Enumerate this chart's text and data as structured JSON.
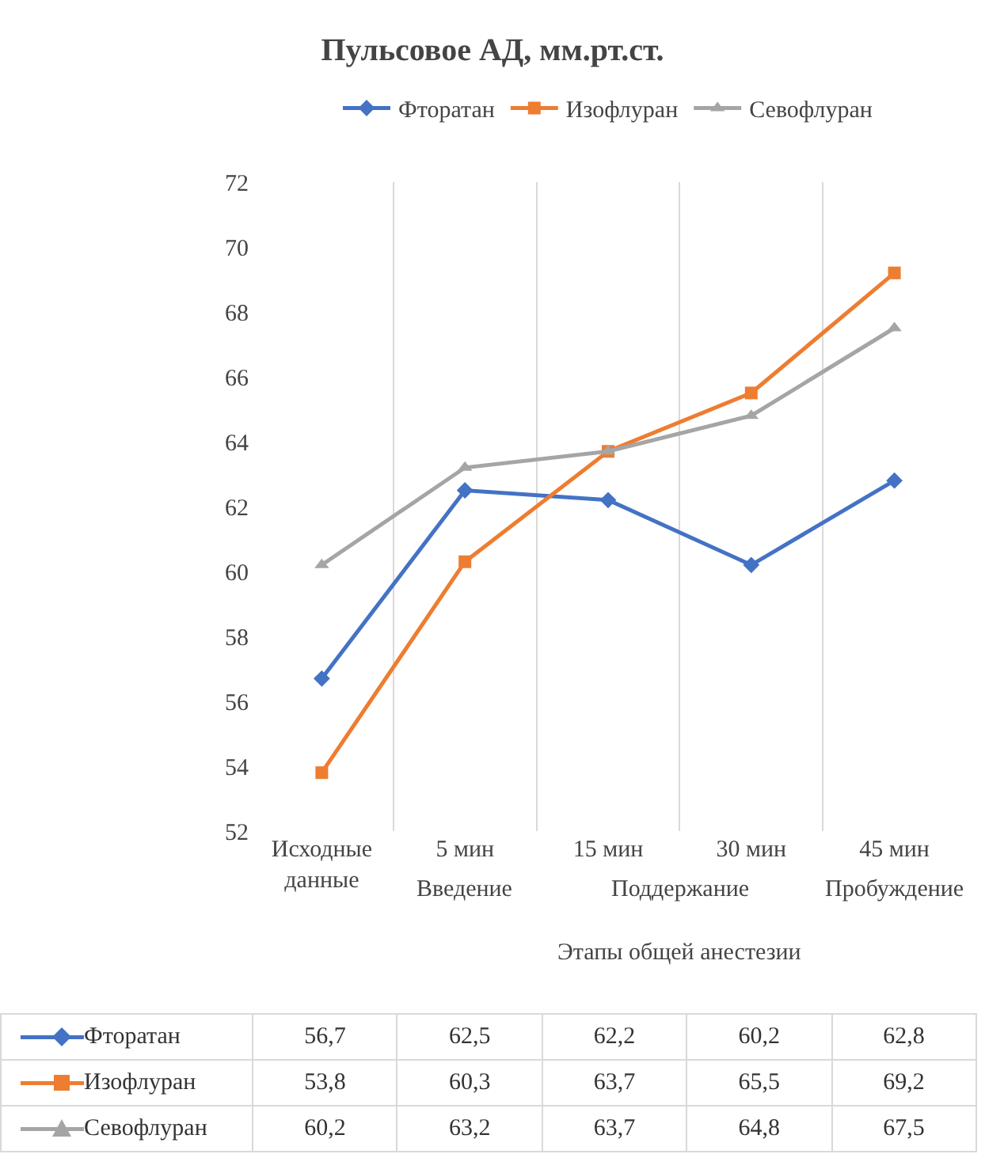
{
  "chart_data": {
    "type": "line",
    "title": "Пульсовое АД, мм.рт.ст.",
    "categories": [
      "Исходные данные",
      "5 мин",
      "15 мин",
      "30 мин",
      "45 мин"
    ],
    "series": [
      {
        "name": "Фторатан",
        "color": "#4472c4",
        "marker": "diamond",
        "values": [
          56.7,
          62.5,
          62.2,
          60.2,
          62.8
        ],
        "value_labels": [
          "56,7",
          "62,5",
          "62,2",
          "60,2",
          "62,8"
        ]
      },
      {
        "name": "Изофлуран",
        "color": "#ed7d31",
        "marker": "square",
        "values": [
          53.8,
          60.3,
          63.7,
          65.5,
          69.2
        ],
        "value_labels": [
          "53,8",
          "60,3",
          "63,7",
          "65,5",
          "69,2"
        ]
      },
      {
        "name": "Севофлуран",
        "color": "#a5a5a5",
        "marker": "triangle",
        "values": [
          60.2,
          63.2,
          63.7,
          64.8,
          67.5
        ],
        "value_labels": [
          "60,2",
          "63,2",
          "63,7",
          "64,8",
          "67,5"
        ]
      }
    ],
    "ylim": [
      52,
      72
    ],
    "yticks": [
      52,
      54,
      56,
      58,
      60,
      62,
      64,
      66,
      68,
      70,
      72
    ],
    "grid": "x",
    "legend": "top",
    "line_style": "solid",
    "annotations": [
      "Введение",
      "Поддержание",
      "Пробуждение",
      "Этапы общей анестезии"
    ]
  }
}
